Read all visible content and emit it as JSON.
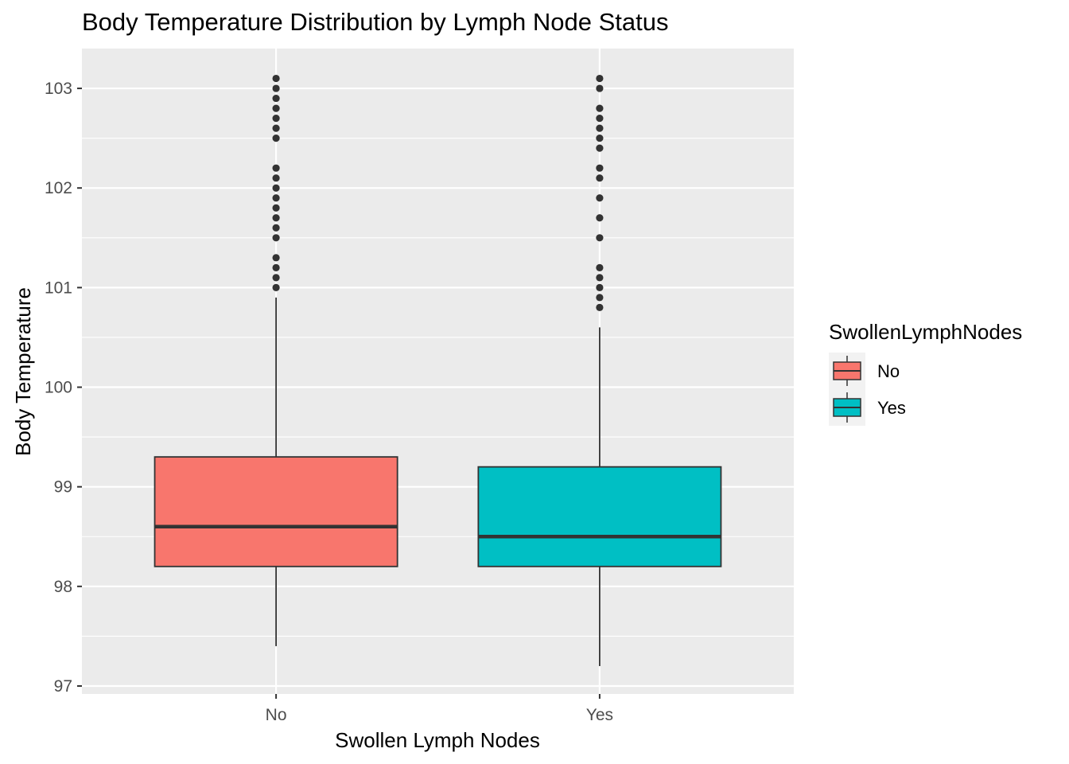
{
  "chart_data": {
    "type": "boxplot",
    "title": "Body Temperature Distribution by Lymph Node Status",
    "xlabel": "Swollen Lymph Nodes",
    "ylabel": "Body Temperature",
    "categories": [
      "No",
      "Yes"
    ],
    "ylim": [
      96.92,
      103.4
    ],
    "yticks": [
      97,
      98,
      99,
      100,
      101,
      102,
      103
    ],
    "grid": true,
    "legend": {
      "title": "SwollenLymphNodes",
      "placement": "right",
      "entries": [
        {
          "label": "No",
          "color": "#F8766D"
        },
        {
          "label": "Yes",
          "color": "#00BFC4"
        }
      ]
    },
    "boxes": [
      {
        "category": "No",
        "color": "#F8766D",
        "whisker_low": 97.4,
        "q1": 98.2,
        "median": 98.6,
        "q3": 99.3,
        "whisker_high": 100.9,
        "outliers": [
          101.0,
          101.1,
          101.2,
          101.3,
          101.5,
          101.6,
          101.7,
          101.8,
          101.9,
          102.0,
          102.1,
          102.2,
          102.5,
          102.6,
          102.7,
          102.8,
          102.9,
          103.0,
          103.1
        ]
      },
      {
        "category": "Yes",
        "color": "#00BFC4",
        "whisker_low": 97.2,
        "q1": 98.2,
        "median": 98.5,
        "q3": 99.2,
        "whisker_high": 100.6,
        "outliers": [
          100.8,
          100.9,
          101.0,
          101.1,
          101.2,
          101.5,
          101.7,
          101.9,
          102.1,
          102.2,
          102.4,
          102.5,
          102.6,
          102.7,
          102.8,
          103.0,
          103.1
        ]
      }
    ]
  },
  "colors": {
    "panel_background": "#EBEBEB",
    "grid_major": "#FFFFFF",
    "box_outline": "#333333"
  }
}
